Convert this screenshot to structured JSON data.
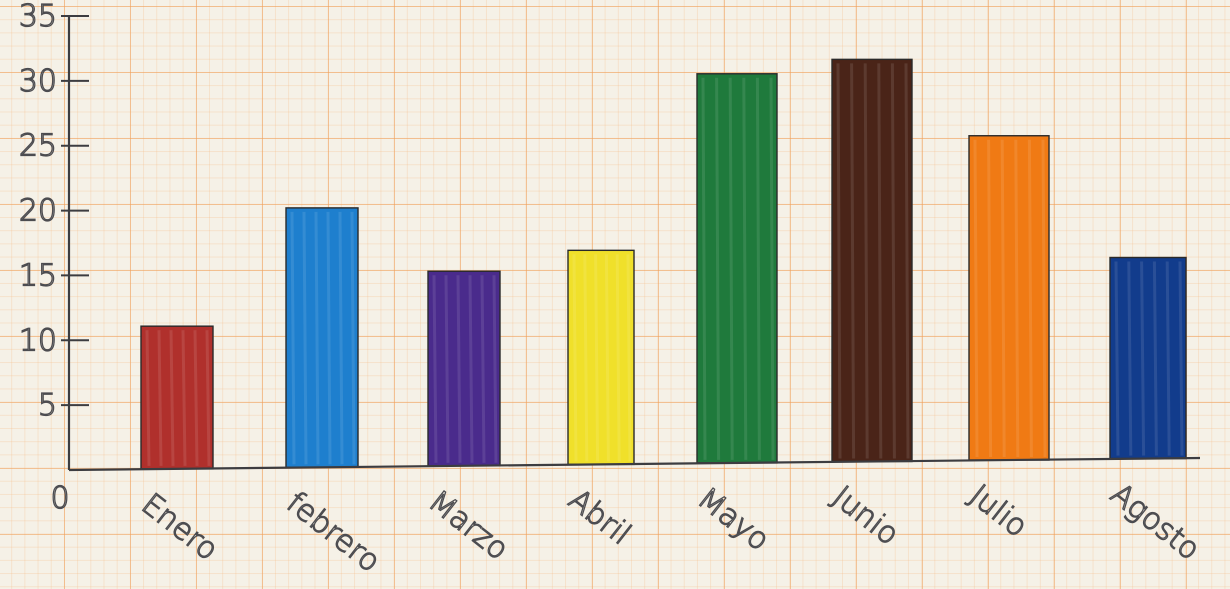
{
  "chart_data": {
    "type": "bar",
    "title": "",
    "xlabel": "",
    "ylabel": "",
    "ylim": [
      0,
      35
    ],
    "yticks": [
      5,
      10,
      15,
      20,
      25,
      30,
      35
    ],
    "origin_label": "0",
    "grid": true,
    "categories": [
      "Enero",
      "febrero",
      "Marzo",
      "Abril",
      "Mayo",
      "Junio",
      "Julio",
      "Agosto"
    ],
    "values": [
      11,
      20,
      15,
      16.5,
      30,
      31,
      25,
      15.5
    ],
    "colors": [
      "#b0302c",
      "#1e7fce",
      "#4a2b8c",
      "#f0e02a",
      "#1f7a3c",
      "#4a2418",
      "#f07a14",
      "#123c8c"
    ]
  }
}
